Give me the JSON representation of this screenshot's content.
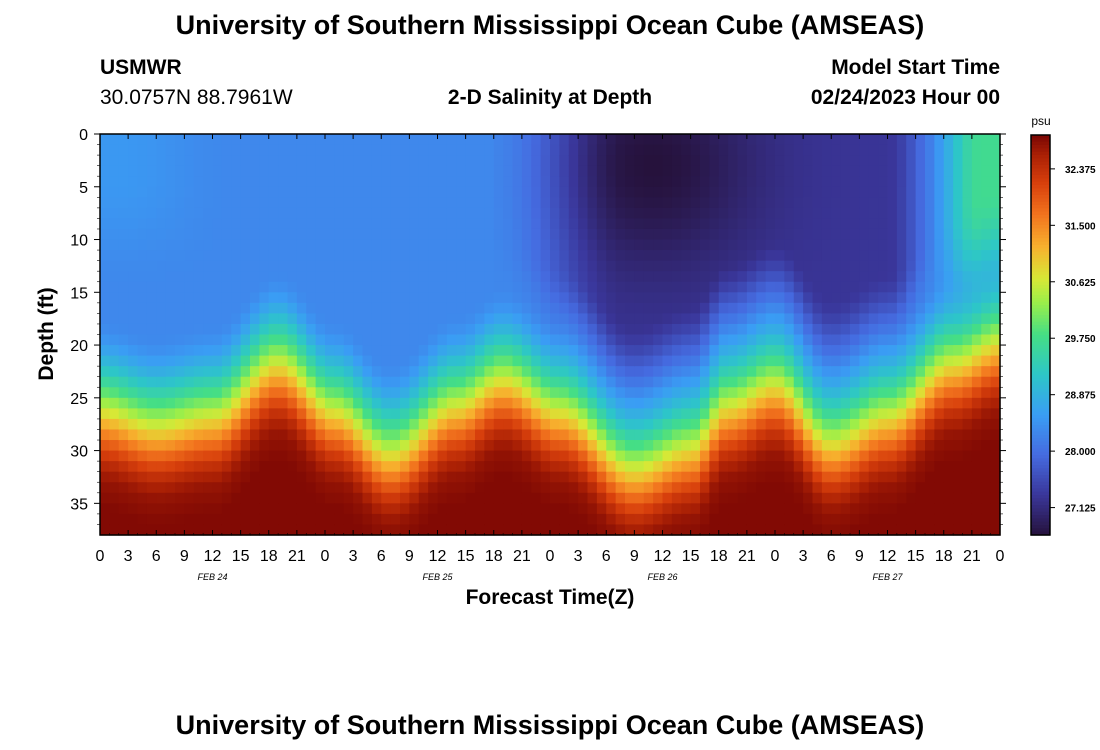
{
  "header": {
    "title": "University of Southern Mississippi Ocean Cube (AMSEAS)",
    "station": "USMWR",
    "coords": "30.0757N  88.7961W",
    "subtitle": "2-D Salinity at Depth",
    "model_label": "Model Start Time",
    "model_time": "02/24/2023 Hour 00"
  },
  "footer": {
    "title": "University of Southern Mississippi Ocean Cube (AMSEAS)"
  },
  "chart_data": {
    "type": "heatmap",
    "title": "2-D Salinity at Depth",
    "xlabel": "Forecast Time(Z)",
    "ylabel": "Depth (ft)",
    "x_unit": "hours since 02/24/2023 00Z",
    "xlim": [
      0,
      96
    ],
    "ylim": [
      0,
      38
    ],
    "x_tick_labels": [
      "0",
      "3",
      "6",
      "9",
      "12",
      "15",
      "18",
      "21",
      "0",
      "3",
      "6",
      "9",
      "12",
      "15",
      "18",
      "21",
      "0",
      "3",
      "6",
      "9",
      "12",
      "15",
      "18",
      "21",
      "0",
      "3",
      "6",
      "9",
      "12",
      "15",
      "18",
      "21",
      "0"
    ],
    "y_ticks": [
      0,
      5,
      10,
      15,
      20,
      25,
      30,
      35
    ],
    "day_labels": [
      {
        "hour": 12,
        "label": "FEB 24"
      },
      {
        "hour": 36,
        "label": "FEB 25"
      },
      {
        "hour": 60,
        "label": "FEB 26"
      },
      {
        "hour": 84,
        "label": "FEB 27"
      }
    ],
    "colorbar": {
      "unit": "psu",
      "min": 26.7,
      "max": 32.9,
      "tick_labels": [
        "32.375",
        "31.500",
        "30.625",
        "29.750",
        "28.875",
        "28.000",
        "27.125"
      ]
    },
    "halocline_depth_ft": [
      {
        "hour": 0,
        "depth": 21.5
      },
      {
        "hour": 6,
        "depth": 23.0
      },
      {
        "hour": 12,
        "depth": 22.0
      },
      {
        "hour": 19,
        "depth": 17.0
      },
      {
        "hour": 25,
        "depth": 21.5
      },
      {
        "hour": 31,
        "depth": 25.5
      },
      {
        "hour": 38,
        "depth": 21.0
      },
      {
        "hour": 43,
        "depth": 18.5
      },
      {
        "hour": 49,
        "depth": 21.5
      },
      {
        "hour": 57,
        "depth": 27.0
      },
      {
        "hour": 63,
        "depth": 25.0
      },
      {
        "hour": 67,
        "depth": 21.0
      },
      {
        "hour": 72,
        "depth": 19.0
      },
      {
        "hour": 78,
        "depth": 24.5
      },
      {
        "hour": 84,
        "depth": 22.0
      },
      {
        "hour": 91,
        "depth": 17.0
      },
      {
        "hour": 96,
        "depth": 15.0
      }
    ],
    "fresh_lens": {
      "start_hour": 48,
      "end_hour": 88,
      "core_hour": 59,
      "core_depth_ft": 3,
      "min_salinity": 26.9
    },
    "surface_salinity": 28.3,
    "bottom_salinity": 32.4
  }
}
